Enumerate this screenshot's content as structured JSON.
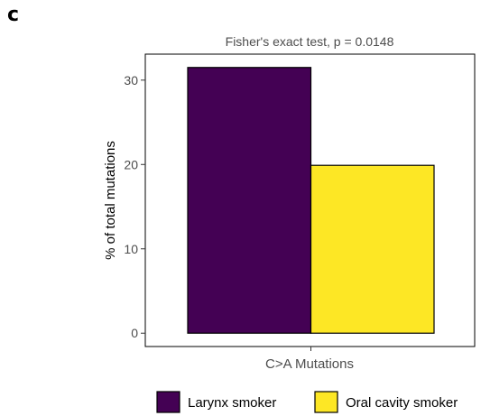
{
  "panel_label": "c",
  "chart_data": {
    "type": "bar",
    "title": "Fisher's exact test, p = 0.0148",
    "xlabel": "C>A Mutations",
    "ylabel": "% of total mutations",
    "categories": [
      "C>A Mutations"
    ],
    "series": [
      {
        "name": "Larynx smoker",
        "values": [
          31.5
        ],
        "color": "#440154"
      },
      {
        "name": "Oral cavity smoker",
        "values": [
          19.9
        ],
        "color": "#FDE725"
      }
    ],
    "ylim": [
      -1.58,
      33.08
    ],
    "yticks": [
      0,
      10,
      20,
      30
    ],
    "grid": false,
    "legend_position": "bottom"
  }
}
